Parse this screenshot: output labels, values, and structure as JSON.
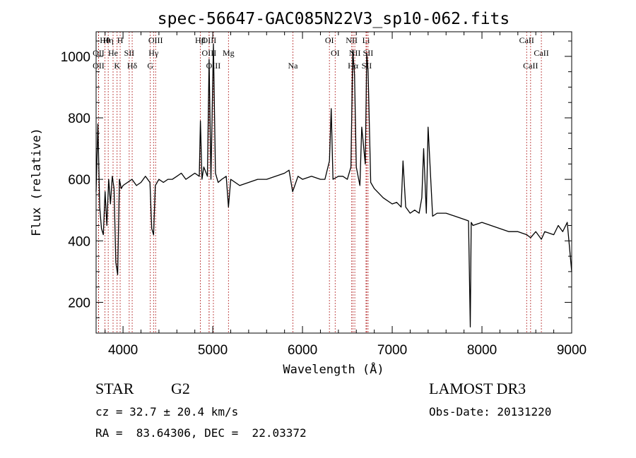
{
  "chart_data": {
    "type": "line",
    "title": "spec-56647-GAC085N22V3_sp10-062.fits",
    "xlabel": "Wavelength (Å)",
    "ylabel": "Flux (relative)",
    "xlim": [
      3700,
      9000
    ],
    "ylim": [
      100,
      1080
    ],
    "x_ticks": [
      4000,
      5000,
      6000,
      7000,
      8000,
      9000
    ],
    "y_ticks": [
      200,
      400,
      600,
      800,
      1000
    ],
    "grid": false,
    "colors": {
      "spectrum": "#000000",
      "line_markers": "#b22222",
      "axes": "#000000"
    },
    "spectrum": {
      "name": "flux",
      "wavelength": [
        3700,
        3720,
        3740,
        3760,
        3780,
        3800,
        3820,
        3840,
        3860,
        3880,
        3900,
        3920,
        3940,
        3960,
        3980,
        4000,
        4050,
        4100,
        4150,
        4200,
        4250,
        4300,
        4320,
        4340,
        4360,
        4400,
        4450,
        4500,
        4550,
        4600,
        4650,
        4700,
        4750,
        4800,
        4850,
        4862,
        4880,
        4900,
        4940,
        4959,
        4980,
        5007,
        5030,
        5060,
        5100,
        5150,
        5175,
        5200,
        5300,
        5400,
        5500,
        5600,
        5700,
        5800,
        5850,
        5890,
        5950,
        6000,
        6100,
        6200,
        6250,
        6300,
        6320,
        6340,
        6400,
        6450,
        6500,
        6540,
        6560,
        6580,
        6600,
        6640,
        6660,
        6700,
        6716,
        6731,
        6760,
        6800,
        6900,
        7000,
        7050,
        7100,
        7120,
        7150,
        7200,
        7250,
        7300,
        7330,
        7350,
        7380,
        7400,
        7450,
        7500,
        7600,
        7700,
        7800,
        7850,
        7870,
        7880,
        7900,
        7950,
        8000,
        8100,
        8200,
        8300,
        8400,
        8500,
        8542,
        8600,
        8662,
        8700,
        8800,
        8850,
        8900,
        8950,
        9000
      ],
      "flux": [
        560,
        780,
        510,
        440,
        420,
        560,
        450,
        600,
        520,
        610,
        570,
        330,
        290,
        600,
        570,
        580,
        590,
        600,
        580,
        590,
        610,
        590,
        440,
        420,
        580,
        600,
        590,
        600,
        600,
        610,
        620,
        600,
        610,
        620,
        610,
        790,
        600,
        640,
        610,
        990,
        600,
        1040,
        620,
        590,
        600,
        610,
        510,
        600,
        580,
        590,
        600,
        600,
        610,
        620,
        630,
        560,
        610,
        600,
        610,
        600,
        600,
        660,
        830,
        600,
        610,
        610,
        600,
        640,
        1020,
        940,
        640,
        580,
        770,
        650,
        1010,
        950,
        590,
        570,
        540,
        520,
        525,
        510,
        660,
        510,
        490,
        500,
        490,
        540,
        700,
        490,
        770,
        480,
        490,
        490,
        480,
        470,
        465,
        120,
        460,
        450,
        455,
        460,
        450,
        440,
        430,
        430,
        420,
        410,
        430,
        405,
        430,
        420,
        450,
        430,
        460,
        300
      ]
    },
    "line_markers": [
      {
        "label": "Hθ",
        "wavelength": 3798
      },
      {
        "label": "OII",
        "wavelength": 3727
      },
      {
        "label": "OII",
        "wavelength": 3727
      },
      {
        "label": "Hη",
        "wavelength": 3835
      },
      {
        "label": "He",
        "wavelength": 3889
      },
      {
        "label": "K",
        "wavelength": 3934
      },
      {
        "label": "H",
        "wavelength": 3968
      },
      {
        "label": "SII",
        "wavelength": 4069
      },
      {
        "label": "Hδ",
        "wavelength": 4102
      },
      {
        "label": "OIII",
        "wavelength": 4363
      },
      {
        "label": "Hγ",
        "wavelength": 4340
      },
      {
        "label": "G",
        "wavelength": 4304
      },
      {
        "label": "Hβ",
        "wavelength": 4861
      },
      {
        "label": "OIII",
        "wavelength": 4959
      },
      {
        "label": "OIII",
        "wavelength": 5007
      },
      {
        "label": "OIII",
        "wavelength": 4959
      },
      {
        "label": "Mg",
        "wavelength": 5175
      },
      {
        "label": "Na",
        "wavelength": 5893
      },
      {
        "label": "OI",
        "wavelength": 6300
      },
      {
        "label": "OI",
        "wavelength": 6364
      },
      {
        "label": "Hα",
        "wavelength": 6563
      },
      {
        "label": "NII",
        "wavelength": 6548
      },
      {
        "label": "NII",
        "wavelength": 6583
      },
      {
        "label": "SII",
        "wavelength": 6716
      },
      {
        "label": "Li",
        "wavelength": 6708
      },
      {
        "label": "SII",
        "wavelength": 6731
      },
      {
        "label": "CaII",
        "wavelength": 8542
      },
      {
        "label": "CaII",
        "wavelength": 8498
      },
      {
        "label": "CaII",
        "wavelength": 8662
      }
    ]
  },
  "info": {
    "object_class": "STAR",
    "subclass": "G2",
    "survey": "LAMOST DR3",
    "redshift_text": "cz = 32.7 ± 20.4 km/s",
    "obs_date": "Obs-Date: 20131220",
    "coords": "RA =  83.64306, DEC =  22.03372"
  }
}
